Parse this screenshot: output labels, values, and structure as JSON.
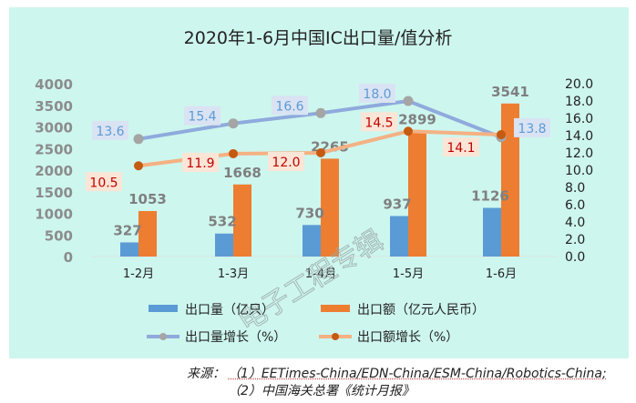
{
  "chart_data": {
    "type": "bar",
    "title": "2020年1-6月中国IC出口量/值分析",
    "categories": [
      "1-2月",
      "1-3月",
      "1-4月",
      "1-5月",
      "1-6月"
    ],
    "series": [
      {
        "name": "出口量（亿只）",
        "kind": "bar",
        "axis": "left",
        "color": "#5b9bd5",
        "values": [
          327,
          532,
          730,
          937,
          1126
        ]
      },
      {
        "name": "出口额（亿元人民币）",
        "kind": "bar",
        "axis": "left",
        "color": "#ed7d31",
        "values": [
          1053,
          1668,
          2265,
          2899,
          3541
        ]
      },
      {
        "name": "出口量增长（%）",
        "kind": "line",
        "axis": "right",
        "color": "#8faadc",
        "marker": "#a5a5a5",
        "label_bg": "#dae3f3",
        "label_color": "#5b9bd5",
        "values": [
          13.6,
          15.4,
          16.6,
          18.0,
          13.8
        ]
      },
      {
        "name": "出口额增长（%）",
        "kind": "line",
        "axis": "right",
        "color": "#f4b183",
        "marker": "#c55a11",
        "label_bg": "#fbe5d6",
        "label_color": "#c00000",
        "values": [
          10.5,
          11.9,
          12.0,
          14.5,
          14.1
        ]
      }
    ],
    "y_left": {
      "range": [
        0,
        4000
      ],
      "ticks": [
        "0",
        "500",
        "1000",
        "1500",
        "2000",
        "2500",
        "3000",
        "3500",
        "4000"
      ]
    },
    "y_right": {
      "range": [
        0,
        20
      ],
      "ticks": [
        "0.0",
        "2.0",
        "4.0",
        "6.0",
        "8.0",
        "10.0",
        "12.0",
        "14.0",
        "16.0",
        "18.0",
        "20.0"
      ]
    },
    "legend": "bottom",
    "grid": false
  },
  "watermark": "电子工程专辑",
  "source": {
    "label": "来源：",
    "line1": "（1）EETimes-China/EDN-China/ESM-China/Robotics-China;",
    "line2": "（2）中国海关总署《统计月报》"
  }
}
